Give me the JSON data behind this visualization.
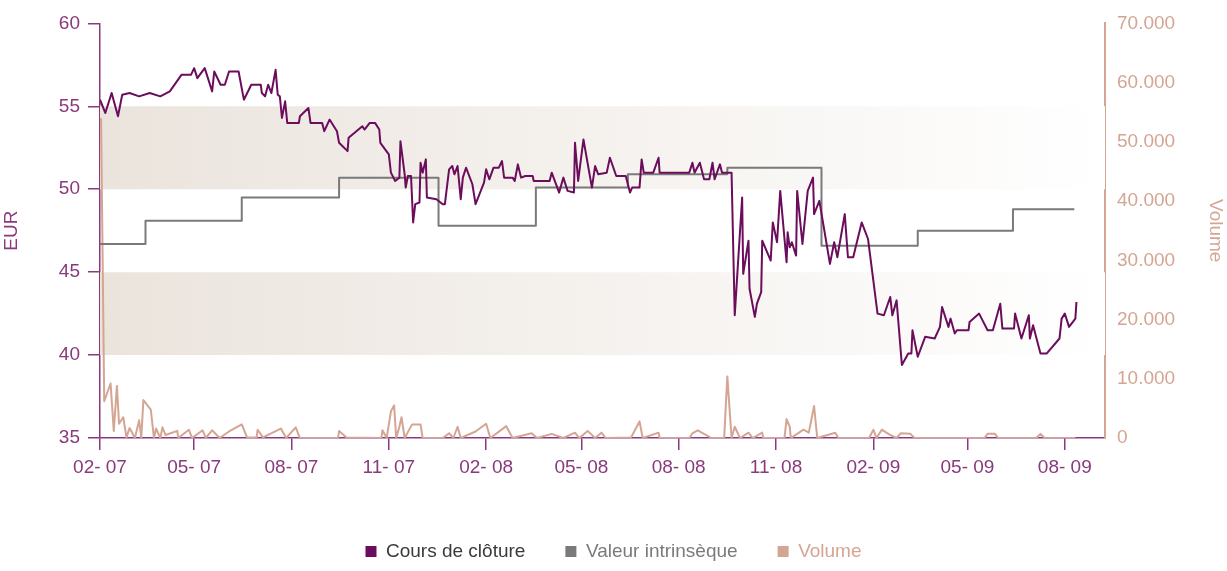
{
  "chart_data": {
    "type": "line",
    "ylabel": "EUR",
    "y2label": "Volume",
    "legend": "bottom",
    "marker": "none",
    "grid": false,
    "xlim": [
      "2007-02-01",
      "2009-09-08"
    ],
    "xticks": [
      {
        "value": "2007-02-01",
        "label": "02- 07"
      },
      {
        "value": "2007-05-01",
        "label": "05- 07"
      },
      {
        "value": "2007-08-01",
        "label": "08- 07"
      },
      {
        "value": "2007-11-01",
        "label": "11- 07"
      },
      {
        "value": "2008-02-01",
        "label": "02- 08"
      },
      {
        "value": "2008-05-01",
        "label": "05- 08"
      },
      {
        "value": "2008-08-01",
        "label": "08- 08"
      },
      {
        "value": "2008-11-01",
        "label": "11- 08"
      },
      {
        "value": "2009-02-01",
        "label": "02- 09"
      },
      {
        "value": "2009-05-01",
        "label": "05- 09"
      },
      {
        "value": "2009-08-01",
        "label": "08- 09"
      }
    ],
    "ylim": [
      35,
      60
    ],
    "yticks": [
      35,
      40,
      45,
      50,
      55,
      60
    ],
    "y2lim": [
      0,
      70000
    ],
    "y2ticks": [
      {
        "value": 0,
        "label": "0"
      },
      {
        "value": 10000,
        "label": "10.000"
      },
      {
        "value": 20000,
        "label": "20.000"
      },
      {
        "value": 30000,
        "label": "30.000"
      },
      {
        "value": 40000,
        "label": "40.000"
      },
      {
        "value": 50000,
        "label": "50.000"
      },
      {
        "value": 60000,
        "label": "60.000"
      },
      {
        "value": 70000,
        "label": "70.000"
      }
    ],
    "bands": [
      {
        "axis": "y",
        "from": 40,
        "to": 45,
        "color": "#ebe4dd"
      },
      {
        "axis": "y",
        "from": 50,
        "to": 55,
        "color": "#ebe4dd"
      }
    ],
    "series": [
      {
        "name": "Cours de clôture",
        "type": "line",
        "color": "#6b0d5c",
        "x": [
          "2007-02-01",
          "2007-02-06",
          "2007-02-12",
          "2007-02-18",
          "2007-02-22",
          "2007-03-01",
          "2007-03-10",
          "2007-03-20",
          "2007-03-30",
          "2007-04-08",
          "2007-04-19",
          "2007-04-28",
          "2007-05-01",
          "2007-05-04",
          "2007-05-11",
          "2007-05-18",
          "2007-05-20",
          "2007-05-26",
          "2007-05-30",
          "2007-06-03",
          "2007-06-12",
          "2007-06-17",
          "2007-06-24",
          "2007-07-03",
          "2007-07-04",
          "2007-07-07",
          "2007-07-10",
          "2007-07-13",
          "2007-07-17",
          "2007-07-19",
          "2007-07-21",
          "2007-07-23",
          "2007-07-26",
          "2007-07-28",
          "2007-08-08",
          "2007-08-09",
          "2007-08-17",
          "2007-08-19",
          "2007-08-30",
          "2007-09-01",
          "2007-09-06",
          "2007-09-13",
          "2007-09-15",
          "2007-09-23",
          "2007-09-24",
          "2007-10-07",
          "2007-10-09",
          "2007-10-14",
          "2007-10-19",
          "2007-10-23",
          "2007-10-24",
          "2007-11-01",
          "2007-11-03",
          "2007-11-07",
          "2007-11-11",
          "2007-11-12",
          "2007-11-16",
          "2007-11-17",
          "2007-11-19",
          "2007-11-22",
          "2007-11-24",
          "2007-11-26",
          "2007-11-30",
          "2007-12-01",
          "2007-12-03",
          "2007-12-06",
          "2007-12-07",
          "2007-12-16",
          "2007-12-22",
          "2007-12-24",
          "2007-12-28",
          "2007-12-31",
          "2008-01-02",
          "2008-01-05",
          "2008-01-08",
          "2008-01-10",
          "2008-01-13",
          "2008-01-19",
          "2008-01-22",
          "2008-01-30",
          "2008-02-01",
          "2008-02-04",
          "2008-02-08",
          "2008-02-13",
          "2008-02-16",
          "2008-02-18",
          "2008-02-26",
          "2008-02-28",
          "2008-03-02",
          "2008-03-05",
          "2008-03-09",
          "2008-03-16",
          "2008-03-17",
          "2008-04-01",
          "2008-04-03",
          "2008-04-10",
          "2008-04-14",
          "2008-04-18",
          "2008-04-24",
          "2008-04-25",
          "2008-04-28",
          "2008-05-03",
          "2008-05-11",
          "2008-05-14",
          "2008-05-17",
          "2008-05-25",
          "2008-05-28",
          "2008-06-03",
          "2008-06-12",
          "2008-06-16",
          "2008-06-18",
          "2008-06-25",
          "2008-06-27",
          "2008-06-29",
          "2008-07-08",
          "2008-07-13",
          "2008-07-14",
          "2008-08-11",
          "2008-08-14",
          "2008-08-16",
          "2008-08-21",
          "2008-08-25",
          "2008-08-30",
          "2008-09-02",
          "2008-09-04",
          "2008-09-09",
          "2008-09-11",
          "2008-09-20",
          "2008-09-23",
          "2008-09-30",
          "2008-10-01",
          "2008-10-06",
          "2008-10-07",
          "2008-10-12",
          "2008-10-14",
          "2008-10-18",
          "2008-10-19",
          "2008-10-27",
          "2008-10-29",
          "2008-11-02",
          "2008-11-05",
          "2008-11-11",
          "2008-11-12",
          "2008-11-14",
          "2008-11-16",
          "2008-11-20",
          "2008-11-21",
          "2008-11-26",
          "2008-12-01",
          "2008-12-06",
          "2008-12-07",
          "2008-12-12",
          "2008-12-22",
          "2008-12-26",
          "2008-12-29",
          "2009-01-05",
          "2009-01-08",
          "2009-01-13",
          "2009-01-21",
          "2009-01-27",
          "2009-02-05",
          "2009-02-11",
          "2009-02-17",
          "2009-02-19",
          "2009-02-23",
          "2009-02-28",
          "2009-03-06",
          "2009-03-09",
          "2009-03-10",
          "2009-03-15",
          "2009-03-22",
          "2009-03-31",
          "2009-04-05",
          "2009-04-07",
          "2009-04-13",
          "2009-04-15",
          "2009-04-19",
          "2009-04-21",
          "2009-05-02",
          "2009-05-03",
          "2009-05-12",
          "2009-05-20",
          "2009-05-25",
          "2009-06-01",
          "2009-06-03",
          "2009-06-14",
          "2009-06-15",
          "2009-06-21",
          "2009-06-28",
          "2009-06-29",
          "2009-07-02",
          "2009-07-09",
          "2009-07-15",
          "2009-07-27",
          "2009-07-29",
          "2009-08-01",
          "2009-08-05",
          "2009-08-11",
          "2009-08-12"
        ],
        "values": [
          55.4,
          54.6,
          55.8,
          54.4,
          55.7,
          55.8,
          55.6,
          55.8,
          55.6,
          55.9,
          56.9,
          56.9,
          57.3,
          56.7,
          57.3,
          55.9,
          57.1,
          56.3,
          56.3,
          57.1,
          57.1,
          55.4,
          56.3,
          56.3,
          55.8,
          55.6,
          56.3,
          55.8,
          57.2,
          55.7,
          55.6,
          54.3,
          55.3,
          54.0,
          54.0,
          54.4,
          54.9,
          54.0,
          54.0,
          53.5,
          54.2,
          53.5,
          52.8,
          52.3,
          53.1,
          53.8,
          53.6,
          54.0,
          54.0,
          53.6,
          52.8,
          52.1,
          51.0,
          50.5,
          50.7,
          52.9,
          50.9,
          50.1,
          50.8,
          50.8,
          48.0,
          49.1,
          49.2,
          51.6,
          51.0,
          51.8,
          49.5,
          49.4,
          49.1,
          49.1,
          51.2,
          51.4,
          50.9,
          51.4,
          49.4,
          50.7,
          51.3,
          50.3,
          49.1,
          50.4,
          51.2,
          50.6,
          51.3,
          51.3,
          51.7,
          50.7,
          50.7,
          50.5,
          51.5,
          50.7,
          50.8,
          50.8,
          50.5,
          50.5,
          51.0,
          49.8,
          50.7,
          49.9,
          49.8,
          52.8,
          50.5,
          53.0,
          50.1,
          51.4,
          50.9,
          51.0,
          51.9,
          50.8,
          50.8,
          49.8,
          50.1,
          50.1,
          51.8,
          51.0,
          51.0,
          51.9,
          51.0,
          51.0,
          51.6,
          51.0,
          51.6,
          50.6,
          50.6,
          51.6,
          50.6,
          51.5,
          51.0,
          51.0,
          42.4,
          49.5,
          44.9,
          46.9,
          44.0,
          42.3,
          43.1,
          43.8,
          46.9,
          45.7,
          48.0,
          46.8,
          49.9,
          45.6,
          47.4,
          46.5,
          46.8,
          46.0,
          49.9,
          46.7,
          49.9,
          50.7,
          48.5,
          49.3,
          45.5,
          46.8,
          45.9,
          48.5,
          45.9,
          45.9,
          48.0,
          47.0,
          42.5,
          42.4,
          43.5,
          42.4,
          43.3,
          39.4,
          40.1,
          40.1,
          41.5,
          39.9,
          41.1,
          41.0,
          41.7,
          42.9,
          41.7,
          42.2,
          41.3,
          41.5,
          41.5,
          42.0,
          42.5,
          41.5,
          41.5,
          43.1,
          41.6,
          41.6,
          42.5,
          41.0,
          42.4,
          41.0,
          41.8,
          40.1,
          40.1,
          41.0,
          42.2,
          42.5,
          41.7,
          42.2,
          43.2
        ]
      },
      {
        "name": "Valeur intrinsèque",
        "type": "step",
        "color": "#7a7a7a",
        "x": [
          "2007-02-01",
          "2007-03-16",
          "2007-06-15",
          "2007-09-15",
          "2007-12-18",
          "2008-03-19",
          "2008-06-14",
          "2008-09-16",
          "2008-12-14",
          "2009-03-15",
          "2009-06-13",
          "2009-08-10"
        ],
        "values": [
          46.7,
          48.1,
          49.5,
          50.7,
          47.8,
          50.1,
          50.9,
          51.3,
          46.6,
          47.5,
          48.8,
          48.8
        ]
      },
      {
        "name": "Volume",
        "type": "line",
        "axis": "y2",
        "color": "#d4a592",
        "x": [
          "2007-02-02",
          "2007-02-05",
          "2007-02-11",
          "2007-02-14",
          "2007-02-17",
          "2007-02-19",
          "2007-02-23",
          "2007-02-26",
          "2007-03-01",
          "2007-03-06",
          "2007-03-10",
          "2007-03-12",
          "2007-03-14",
          "2007-03-21",
          "2007-03-24",
          "2007-03-26",
          "2007-03-30",
          "2007-04-01",
          "2007-04-04",
          "2007-04-15",
          "2007-04-16",
          "2007-04-26",
          "2007-04-29",
          "2007-05-09",
          "2007-05-12",
          "2007-05-18",
          "2007-05-25",
          "2007-06-03",
          "2007-06-15",
          "2007-06-20",
          "2007-06-29",
          "2007-06-30",
          "2007-07-05",
          "2007-07-22",
          "2007-07-27",
          "2007-08-05",
          "2007-08-09",
          "2007-09-14",
          "2007-09-15",
          "2007-09-22",
          "2007-10-25",
          "2007-10-26",
          "2007-10-30",
          "2007-11-03",
          "2007-11-06",
          "2007-11-08",
          "2007-11-11",
          "2007-11-13",
          "2007-11-16",
          "2007-11-23",
          "2007-11-27",
          "2007-12-01",
          "2007-12-03",
          "2007-12-22",
          "2007-12-28",
          "2008-01-01",
          "2008-01-05",
          "2008-01-08",
          "2008-01-22",
          "2008-02-01",
          "2008-02-05",
          "2008-02-20",
          "2008-02-26",
          "2008-03-15",
          "2008-03-20",
          "2008-04-03",
          "2008-04-14",
          "2008-04-25",
          "2008-04-29",
          "2008-05-07",
          "2008-05-14",
          "2008-05-20",
          "2008-05-24",
          "2008-06-17",
          "2008-06-25",
          "2008-06-28",
          "2008-07-13",
          "2008-07-14",
          "2008-08-11",
          "2008-08-14",
          "2008-08-19",
          "2008-09-01",
          "2008-09-13",
          "2008-09-16",
          "2008-09-20",
          "2008-09-23",
          "2008-09-28",
          "2008-10-06",
          "2008-10-10",
          "2008-10-19",
          "2008-10-20",
          "2008-11-09",
          "2008-11-11",
          "2008-11-14",
          "2008-11-15",
          "2008-11-27",
          "2008-12-02",
          "2008-12-07",
          "2008-12-10",
          "2008-12-27",
          "2008-12-30",
          "2009-01-28",
          "2009-02-01",
          "2009-02-04",
          "2009-02-09",
          "2009-02-16",
          "2009-02-23",
          "2009-02-27",
          "2009-03-08",
          "2009-03-12",
          "2009-05-17",
          "2009-05-20",
          "2009-05-27",
          "2009-05-30",
          "2009-07-05",
          "2009-07-09",
          "2009-07-13",
          "2009-08-11"
        ],
        "values": [
          54000,
          6200,
          9200,
          1200,
          8800,
          2400,
          3500,
          100,
          1700,
          0,
          3000,
          0,
          6400,
          4800,
          0,
          1600,
          0,
          1800,
          500,
          1200,
          0,
          1400,
          0,
          1300,
          0,
          1300,
          0,
          1100,
          2300,
          100,
          100,
          1400,
          100,
          1600,
          0,
          1800,
          0,
          0,
          1200,
          100,
          0,
          1300,
          0,
          4500,
          5500,
          0,
          1900,
          3500,
          0,
          2300,
          2300,
          2300,
          0,
          0,
          800,
          0,
          1900,
          0,
          1100,
          2400,
          0,
          2000,
          0,
          800,
          0,
          700,
          0,
          900,
          0,
          1200,
          0,
          900,
          0,
          100,
          2800,
          0,
          900,
          0,
          0,
          800,
          1300,
          0,
          0,
          10400,
          0,
          1900,
          0,
          900,
          0,
          900,
          0,
          0,
          3200,
          1900,
          0,
          1400,
          900,
          5400,
          0,
          900,
          0,
          0,
          1400,
          0,
          1400,
          600,
          0,
          800,
          700,
          0,
          0,
          700,
          700,
          0,
          0,
          700,
          0,
          0
        ]
      }
    ]
  }
}
